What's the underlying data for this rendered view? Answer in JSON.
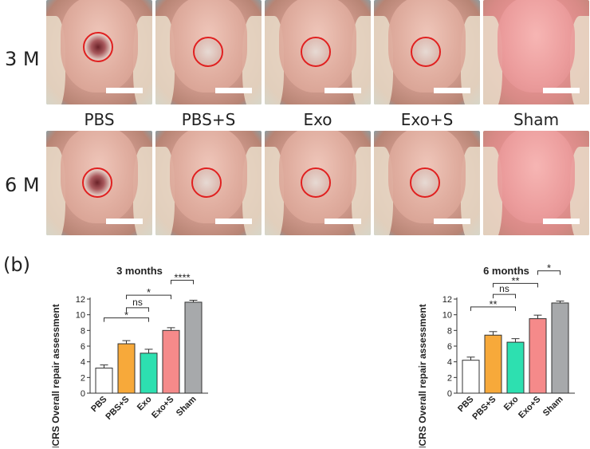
{
  "panel_a": {
    "row_labels": [
      "3 M",
      "6 M"
    ],
    "groups": [
      "PBS",
      "PBS+S",
      "Exo",
      "Exo+S",
      "Sham"
    ]
  },
  "panel_b": {
    "label": "(b)"
  },
  "colors": {
    "PBS": "#ffffff",
    "PBS+S": "#f7a93a",
    "Exo": "#2de0b0",
    "Exo+S": "#f58a8a",
    "Sham": "#a7a9ab"
  },
  "chart_data": [
    {
      "type": "bar",
      "title": "3 months",
      "ylabel": "ICRS Overall repair assessment",
      "xlabel": "",
      "categories": [
        "PBS",
        "PBS+S",
        "Exo",
        "Exo+S",
        "Sham"
      ],
      "values": [
        3.2,
        6.3,
        5.1,
        8.0,
        11.6
      ],
      "errors": [
        0.4,
        0.4,
        0.5,
        0.35,
        0.25
      ],
      "ylim": [
        0,
        12
      ],
      "yticks": [
        0,
        2,
        4,
        6,
        8,
        10,
        12
      ],
      "grid": false,
      "significance": [
        {
          "from": 0,
          "to": 2,
          "label": "*"
        },
        {
          "from": 1,
          "to": 2,
          "label": "ns"
        },
        {
          "from": 1,
          "to": 3,
          "label": "*"
        },
        {
          "from": 3,
          "to": 4,
          "label": "****"
        }
      ]
    },
    {
      "type": "bar",
      "title": "6 months",
      "ylabel": "ICRS Overall repair assessment",
      "xlabel": "",
      "categories": [
        "PBS",
        "PBS+S",
        "Exo",
        "Exo+S",
        "Sham"
      ],
      "values": [
        4.2,
        7.4,
        6.5,
        9.5,
        11.5
      ],
      "errors": [
        0.4,
        0.45,
        0.45,
        0.45,
        0.25
      ],
      "ylim": [
        0,
        12
      ],
      "yticks": [
        0,
        2,
        4,
        6,
        8,
        10,
        12
      ],
      "grid": false,
      "significance": [
        {
          "from": 0,
          "to": 2,
          "label": "**"
        },
        {
          "from": 1,
          "to": 2,
          "label": "ns"
        },
        {
          "from": 1,
          "to": 3,
          "label": "**"
        },
        {
          "from": 3,
          "to": 4,
          "label": "*"
        }
      ]
    }
  ]
}
